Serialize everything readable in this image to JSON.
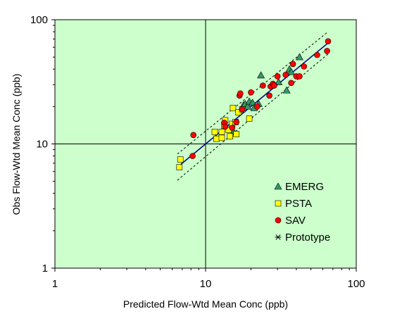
{
  "chart_data": {
    "type": "scatter",
    "xscale": "log",
    "yscale": "log",
    "xlim": [
      1,
      100
    ],
    "ylim": [
      1,
      100
    ],
    "xlabel": "Predicted Flow-Wtd Mean Conc (ppb)",
    "ylabel": "Obs Flow-Wtd Mean Conc (ppb)",
    "x_ticks": [
      "1",
      "10",
      "100"
    ],
    "y_ticks": [
      "1",
      "10",
      "100"
    ],
    "grid": "major lines at 10",
    "legend_position": "lower-right",
    "colors": {
      "plot_bg": "#ccffcc",
      "emerg": "#339966",
      "psta": "#ffff00",
      "sav": "#ff0000",
      "fit_line": "#000080"
    },
    "fit_line": [
      [
        6.5,
        6.5
      ],
      [
        65,
        65
      ]
    ],
    "confidence_band": {
      "upper": [
        [
          6.5,
          8.3
        ],
        [
          65,
          80
        ]
      ],
      "lower": [
        [
          6.5,
          5.1
        ],
        [
          65,
          53
        ]
      ]
    },
    "series": [
      {
        "name": "EMERG",
        "marker": "triangle",
        "points": [
          [
            15.4,
            12.5
          ],
          [
            17.8,
            20.5
          ],
          [
            18.3,
            21.0
          ],
          [
            19.0,
            20.0
          ],
          [
            19.5,
            22.0
          ],
          [
            20.5,
            21.5
          ],
          [
            21.0,
            19.5
          ],
          [
            22.5,
            21.0
          ],
          [
            23.3,
            35.7
          ],
          [
            30.5,
            31.5
          ],
          [
            34.5,
            27.0
          ],
          [
            36.0,
            40.0
          ],
          [
            37.0,
            38.0
          ],
          [
            42.0,
            50.0
          ]
        ]
      },
      {
        "name": "PSTA",
        "marker": "square",
        "points": [
          [
            6.7,
            6.5
          ],
          [
            6.8,
            7.5
          ],
          [
            11.5,
            12.5
          ],
          [
            11.8,
            11.0
          ],
          [
            12.8,
            12.5
          ],
          [
            13.3,
            14.0
          ],
          [
            13.5,
            15.5
          ],
          [
            14.5,
            11.5
          ],
          [
            15.0,
            14.5
          ],
          [
            15.2,
            19.5
          ],
          [
            15.8,
            15.0
          ],
          [
            16.0,
            12.0
          ],
          [
            16.5,
            18.0
          ],
          [
            17.5,
            19.0
          ],
          [
            19.5,
            16.0
          ],
          [
            12.8,
            11.2
          ],
          [
            14.2,
            13.0
          ]
        ]
      },
      {
        "name": "SAV",
        "marker": "circle",
        "points": [
          [
            8.2,
            8.0
          ],
          [
            8.3,
            11.8
          ],
          [
            13.3,
            14.8
          ],
          [
            13.5,
            13.8
          ],
          [
            16.8,
            24.5
          ],
          [
            17.0,
            25.5
          ],
          [
            17.5,
            19.0
          ],
          [
            20.0,
            26.0
          ],
          [
            22.0,
            20.0
          ],
          [
            24.0,
            29.5
          ],
          [
            26.5,
            24.5
          ],
          [
            27.0,
            29.0
          ],
          [
            28.0,
            30.5
          ],
          [
            28.5,
            29.5
          ],
          [
            30.0,
            35.0
          ],
          [
            34.0,
            36.0
          ],
          [
            37.0,
            31.0
          ],
          [
            38.0,
            44.0
          ],
          [
            40.0,
            35.0
          ],
          [
            42.0,
            35.0
          ],
          [
            45.0,
            42.0
          ],
          [
            55.0,
            52.0
          ],
          [
            64.0,
            56.0
          ],
          [
            65.0,
            67.0
          ],
          [
            16.0,
            15.0
          ],
          [
            15.0,
            13.5
          ]
        ]
      },
      {
        "name": "Prototype",
        "marker": "asterisk",
        "points": []
      }
    ]
  }
}
